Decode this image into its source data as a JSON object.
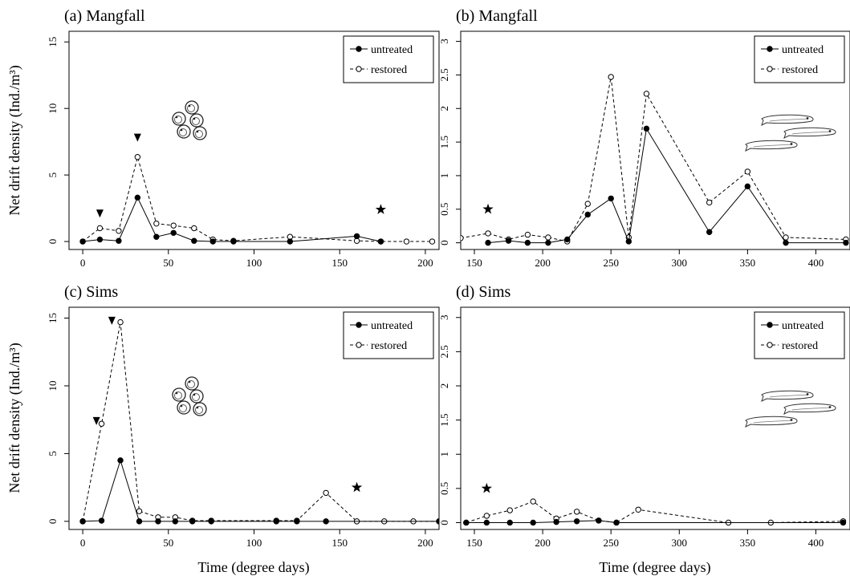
{
  "figure": {
    "xlabel": "Time (degree days)",
    "ylabel": "Net drift density (Ind./m³)"
  },
  "legend": {
    "untreated": "untreated",
    "restored": "restored"
  },
  "chart_data": [
    {
      "type": "line",
      "panel": "a",
      "title": "(a) Mangfall",
      "xlabel": "",
      "ylabel": "Net drift density (Ind./m³)",
      "xlim": [
        -8,
        208
      ],
      "ylim": [
        -0.6,
        15.8
      ],
      "xticks": [
        0,
        50,
        100,
        150,
        200
      ],
      "yticks": [
        0,
        5,
        10,
        15
      ],
      "legend_position": "top-right",
      "series": [
        {
          "name": "untreated",
          "style": "solid, filled circles",
          "x": [
            0,
            10,
            21,
            32,
            43,
            53,
            65,
            76,
            88,
            121,
            160,
            174
          ],
          "y": [
            0,
            0.15,
            0.05,
            3.3,
            0.35,
            0.65,
            0.05,
            0,
            0,
            0,
            0.4,
            0
          ]
        },
        {
          "name": "restored",
          "style": "dashed, open circles",
          "x": [
            0,
            10,
            21,
            32,
            43,
            53,
            65,
            76,
            88,
            121,
            160,
            174,
            189,
            204
          ],
          "y": [
            0,
            1.0,
            0.8,
            6.35,
            1.35,
            1.2,
            1.0,
            0.15,
            0.05,
            0.35,
            0.05,
            0,
            0,
            0
          ]
        }
      ],
      "markers": [
        {
          "type": "triangle",
          "x": 10,
          "y": 2.1
        },
        {
          "type": "triangle",
          "x": 32,
          "y": 7.8
        },
        {
          "type": "star",
          "x": 174,
          "y": 2.4
        }
      ],
      "illustration": "eggs-icon"
    },
    {
      "type": "line",
      "panel": "b",
      "title": "(b) Mangfall",
      "xlabel": "",
      "ylabel": "",
      "xlim": [
        140,
        425
      ],
      "ylim": [
        -0.1,
        3.15
      ],
      "xticks": [
        150,
        200,
        250,
        300,
        350,
        400
      ],
      "yticks": [
        0,
        0.5,
        1,
        1.5,
        2,
        2.5,
        3
      ],
      "legend_position": "top-right",
      "series": [
        {
          "name": "untreated",
          "style": "solid, filled circles",
          "x": [
            160,
            175,
            189,
            204,
            218,
            233,
            250,
            263,
            276,
            322,
            350,
            378,
            422
          ],
          "y": [
            0,
            0.03,
            0,
            0,
            0.05,
            0.42,
            0.66,
            0.02,
            1.7,
            0.16,
            0.84,
            0,
            0
          ]
        },
        {
          "name": "restored",
          "style": "dashed, open circles",
          "x": [
            140,
            160,
            175,
            189,
            204,
            218,
            233,
            250,
            263,
            276,
            322,
            350,
            378,
            422
          ],
          "y": [
            0.07,
            0.14,
            0.05,
            0.12,
            0.08,
            0.02,
            0.58,
            2.47,
            0.08,
            2.22,
            0.6,
            1.06,
            0.08,
            0.05
          ]
        }
      ],
      "markers": [
        {
          "type": "star",
          "x": 160,
          "y": 0.5
        }
      ],
      "illustration": "larvae-icon"
    },
    {
      "type": "line",
      "panel": "c",
      "title": "(c) Sims",
      "xlabel": "Time (degree days)",
      "ylabel": "Net drift density (Ind./m³)",
      "xlim": [
        -8,
        208
      ],
      "ylim": [
        -0.6,
        15.8
      ],
      "xticks": [
        0,
        50,
        100,
        150,
        200
      ],
      "yticks": [
        0,
        5,
        10,
        15
      ],
      "legend_position": "top-right",
      "series": [
        {
          "name": "untreated",
          "style": "solid, filled circles",
          "x": [
            0,
            11,
            22,
            33,
            44,
            54,
            64,
            75,
            113,
            125,
            142,
            208
          ],
          "y": [
            0,
            0.05,
            4.5,
            0,
            0,
            0,
            0,
            0,
            0,
            0,
            0,
            0
          ]
        },
        {
          "name": "restored",
          "style": "dashed, open circles",
          "x": [
            0,
            11,
            22,
            33,
            44,
            54,
            64,
            75,
            113,
            125,
            142,
            160,
            176,
            193,
            208
          ],
          "y": [
            0,
            7.2,
            14.7,
            0.75,
            0.3,
            0.3,
            0.05,
            0.05,
            0.05,
            0.05,
            2.1,
            0,
            0,
            0,
            0
          ]
        }
      ],
      "markers": [
        {
          "type": "triangle",
          "x": 8,
          "y": 7.4
        },
        {
          "type": "triangle",
          "x": 17,
          "y": 14.8
        },
        {
          "type": "star",
          "x": 160,
          "y": 2.5
        }
      ],
      "illustration": "eggs-icon"
    },
    {
      "type": "line",
      "panel": "d",
      "title": "(d) Sims",
      "xlabel": "Time (degree days)",
      "ylabel": "",
      "xlim": [
        140,
        425
      ],
      "ylim": [
        -0.1,
        3.15
      ],
      "xticks": [
        150,
        200,
        250,
        300,
        350,
        400
      ],
      "yticks": [
        0,
        0.5,
        1,
        1.5,
        2,
        2.5,
        3
      ],
      "legend_position": "top-right",
      "series": [
        {
          "name": "untreated",
          "style": "solid, filled circles",
          "x": [
            144,
            159,
            176,
            193,
            210,
            225,
            241,
            254,
            420
          ],
          "y": [
            0,
            0,
            0,
            0,
            0.01,
            0.02,
            0.03,
            0,
            0
          ]
        },
        {
          "name": "restored",
          "style": "dashed, open circles",
          "x": [
            144,
            159,
            176,
            193,
            210,
            225,
            241,
            254,
            270,
            336,
            367,
            420
          ],
          "y": [
            0,
            0.1,
            0.18,
            0.31,
            0.06,
            0.16,
            0.03,
            0,
            0.19,
            0,
            0,
            0.02
          ]
        }
      ],
      "markers": [
        {
          "type": "star",
          "x": 159,
          "y": 0.5
        }
      ],
      "illustration": "larvae-icon"
    }
  ]
}
